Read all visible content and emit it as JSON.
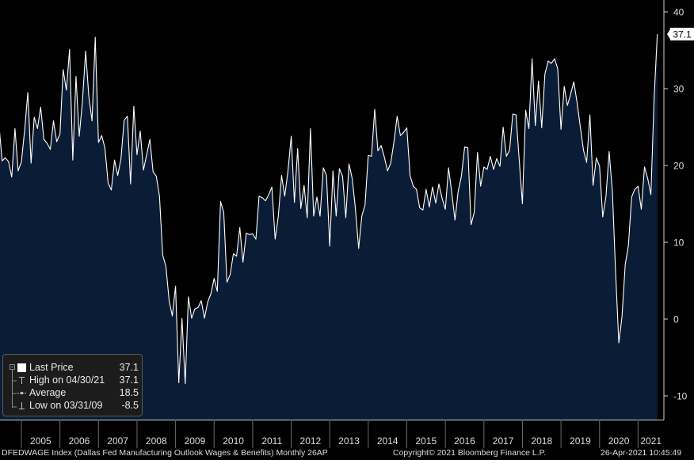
{
  "chart_data": {
    "type": "area",
    "ylim": [
      -13,
      41
    ],
    "yticks": [
      -10,
      0,
      10,
      20,
      30,
      40
    ],
    "x_year_labels": [
      "2005",
      "2006",
      "2007",
      "2008",
      "2009",
      "2010",
      "2011",
      "2012",
      "2013",
      "2014",
      "2015",
      "2016",
      "2017",
      "2018",
      "2019",
      "2020",
      "2021"
    ],
    "last_value_label": "37.1",
    "series": [
      {
        "start": "2004-06",
        "frequency": "monthly",
        "values": [
          25.4,
          20.6,
          21.0,
          20.5,
          18.5,
          24.8,
          19.3,
          20.5,
          24.6,
          29.5,
          20.3,
          26.3,
          24.8,
          27.6,
          23.4,
          22.9,
          22.1,
          25.8,
          23.1,
          24.1,
          32.5,
          29.8,
          35.1,
          20.7,
          31.6,
          23.8,
          28.3,
          34.9,
          29.0,
          25.8,
          36.7,
          23.0,
          23.9,
          22.3,
          17.7,
          16.8,
          20.7,
          18.7,
          20.9,
          25.9,
          26.4,
          17.6,
          27.7,
          21.4,
          24.5,
          19.4,
          21.4,
          23.4,
          19.2,
          18.6,
          16.0,
          8.3,
          6.9,
          2.4,
          0.4,
          4.3,
          -8.3,
          0.1,
          -8.4,
          2.9,
          0.1,
          1.3,
          1.5,
          2.4,
          0.1,
          2.2,
          3.3,
          5.3,
          3.6,
          15.3,
          13.9,
          4.8,
          5.8,
          8.5,
          8.2,
          11.9,
          7.4,
          11.2,
          11.0,
          11.1,
          10.4,
          16.0,
          15.8,
          15.4,
          16.2,
          17.2,
          10.4,
          13.4,
          18.7,
          16.0,
          19.3,
          23.8,
          15.2,
          22.2,
          14.4,
          17.4,
          13.2,
          24.8,
          13.4,
          15.9,
          13.4,
          19.7,
          18.7,
          9.5,
          19.3,
          13.4,
          19.6,
          18.6,
          13.2,
          20.2,
          18.3,
          14.4,
          9.2,
          13.4,
          14.9,
          21.3,
          21.2,
          27.3,
          21.9,
          22.6,
          21.1,
          19.3,
          20.3,
          23.1,
          26.4,
          23.9,
          24.3,
          24.9,
          18.7,
          17.3,
          16.9,
          14.5,
          14.2,
          16.9,
          14.6,
          17.2,
          15.1,
          17.6,
          15.7,
          14.3,
          19.7,
          16.4,
          12.9,
          16.7,
          18.6,
          22.4,
          22.3,
          12.3,
          13.9,
          21.7,
          17.3,
          19.8,
          19.5,
          21.2,
          19.5,
          20.9,
          19.9,
          25.0,
          21.2,
          22.0,
          26.7,
          26.6,
          20.7,
          15.0,
          27.2,
          24.8,
          33.9,
          25.2,
          31.0,
          24.9,
          31.9,
          33.6,
          33.3,
          33.9,
          32.6,
          24.7,
          30.3,
          27.8,
          29.3,
          30.9,
          28.2,
          25.1,
          22.0,
          20.4,
          26.6,
          17.4,
          21.0,
          19.9,
          13.3,
          16.0,
          21.8,
          16.6,
          6.2,
          -3.1,
          0.3,
          7.1,
          9.6,
          15.9,
          16.9,
          17.3,
          14.3,
          19.8,
          18.3,
          16.2,
          28.9,
          37.1
        ]
      }
    ]
  },
  "legend": {
    "items": [
      {
        "label": "Last Price",
        "value": "37.1"
      },
      {
        "label": "High on 04/30/21",
        "value": "37.1"
      },
      {
        "label": "Average",
        "value": "18.5"
      },
      {
        "label": "Low on 03/31/09",
        "value": "-8.5"
      }
    ]
  },
  "footer": {
    "left": "DFEDWAGE Index (Dallas Fed Manufacturing Outlook Wages & Benefits)  Monthly 26AP",
    "center": "Copyright© 2021 Bloomberg Finance L.P.",
    "right": "26-Apr-2021 10:45:49"
  },
  "colors": {
    "background": "#000000",
    "area_fill": "#0b1d36",
    "line": "#ffffff",
    "axis_bg": "#000000",
    "legend_bg": "#1c1c1c"
  }
}
